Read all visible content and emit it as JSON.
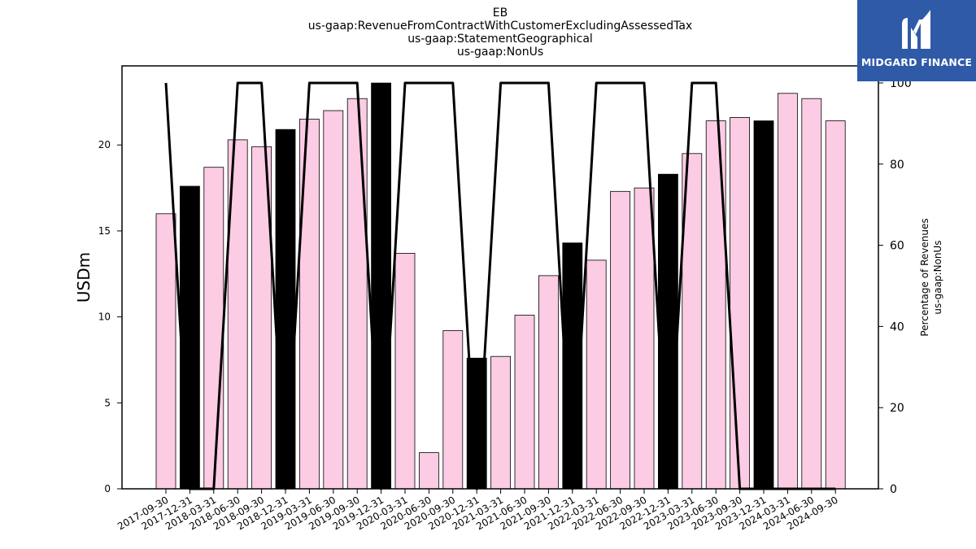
{
  "chart_data": {
    "type": "bar",
    "title_lines": [
      "EB",
      "us-gaap:RevenueFromContractWithCustomerExcludingAssessedTax",
      "us-gaap:StatementGeographical",
      "us-gaap:NonUs"
    ],
    "ylabel": "USDm",
    "y2label_lines": [
      "Percentage of Revenues",
      "us-gaap:NonUs"
    ],
    "ylim": [
      0,
      24.6
    ],
    "y2lim": [
      0,
      104.2
    ],
    "yticks": [
      0,
      5,
      10,
      15,
      20
    ],
    "y2ticks": [
      0,
      20,
      40,
      60,
      80,
      100
    ],
    "categories": [
      "2017-09-30",
      "2017-12-31",
      "2018-03-31",
      "2018-06-30",
      "2018-09-30",
      "2018-12-31",
      "2019-03-31",
      "2019-06-30",
      "2019-09-30",
      "2019-12-31",
      "2020-03-31",
      "2020-06-30",
      "2020-09-30",
      "2020-12-31",
      "2021-03-31",
      "2021-06-30",
      "2021-09-30",
      "2021-12-31",
      "2022-03-31",
      "2022-06-30",
      "2022-09-30",
      "2022-12-31",
      "2023-03-31",
      "2023-06-30",
      "2023-09-30",
      "2023-12-31",
      "2024-03-31",
      "2024-06-30",
      "2024-09-30"
    ],
    "series": [
      {
        "values": [
          16.0,
          17.6,
          18.7,
          20.3,
          19.9,
          20.9,
          21.5,
          22.0,
          22.7,
          23.6,
          13.7,
          2.1,
          9.2,
          7.6,
          7.7,
          10.1,
          12.4,
          14.3,
          13.3,
          17.3,
          17.5,
          18.3,
          19.5,
          21.4,
          21.6,
          21.4,
          23.0,
          22.7,
          21.4
        ],
        "highlight": [
          false,
          true,
          false,
          false,
          false,
          true,
          false,
          false,
          false,
          true,
          false,
          false,
          false,
          true,
          false,
          false,
          false,
          true,
          false,
          false,
          false,
          true,
          false,
          false,
          false,
          true,
          false,
          false,
          false
        ]
      },
      {
        "type": "line",
        "axis": "right",
        "values": [
          100,
          0,
          0,
          100,
          100,
          0,
          100,
          100,
          100,
          0,
          100,
          100,
          100,
          0,
          100,
          100,
          100,
          0,
          100,
          100,
          100,
          0,
          100,
          100,
          0,
          0,
          0,
          0,
          0
        ]
      }
    ],
    "colors": {
      "bar": "#fccbe4",
      "highlight": "#000000",
      "line": "#000000"
    },
    "grid": false
  },
  "logo": {
    "text": "MIDGARD FINANCE",
    "background": "#2f5aa8"
  }
}
